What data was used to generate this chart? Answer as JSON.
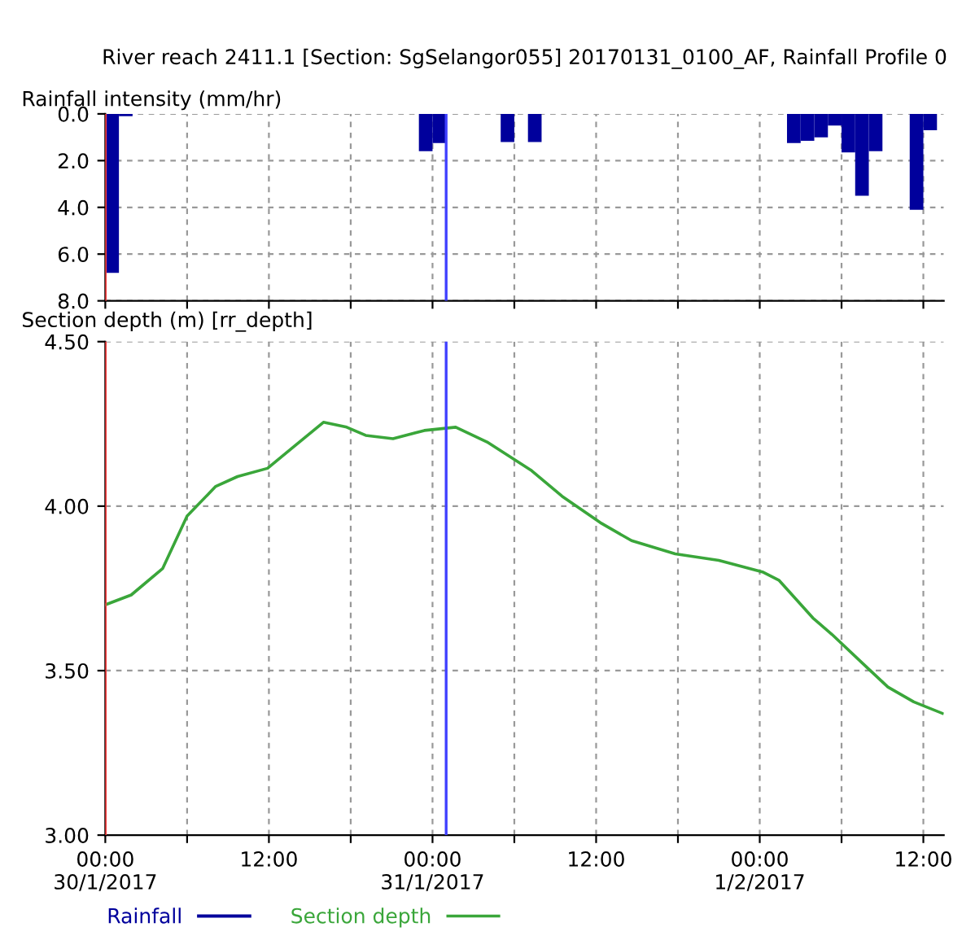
{
  "chart_data": [
    {
      "type": "bar",
      "title": "River reach 2411.1 [Section: SgSelangor055] 20170131_0100_AF, Rainfall Profile 0",
      "ylabel": "Rainfall intensity (mm/hr)",
      "series": [
        {
          "name": "Rainfall",
          "color": "#00009c",
          "x": [
            "2017-01-30T00:30",
            "2017-01-30T01:30",
            "2017-01-30T23:30",
            "2017-01-31T00:30",
            "2017-01-31T05:30",
            "2017-01-31T07:30",
            "2017-02-01T02:30",
            "2017-02-01T03:30",
            "2017-02-01T04:30",
            "2017-02-01T05:30",
            "2017-02-01T06:30",
            "2017-02-01T07:30",
            "2017-02-01T08:30",
            "2017-02-01T11:30",
            "2017-02-01T12:30"
          ],
          "values": [
            6.8,
            0.1,
            1.6,
            1.25,
            1.2,
            1.2,
            1.25,
            1.15,
            1.0,
            0.5,
            1.65,
            3.5,
            1.6,
            4.1,
            0.7
          ]
        }
      ],
      "xlim": [
        "2017-01-30T00:00",
        "2017-02-01T13:30"
      ],
      "xticks": [
        {
          "value": "2017-01-30T00:00",
          "label": null
        },
        {
          "value": "2017-01-30T06:00",
          "label": null
        },
        {
          "value": "2017-01-30T12:00",
          "label": null
        },
        {
          "value": "2017-01-30T18:00",
          "label": null
        },
        {
          "value": "2017-01-31T00:00",
          "label": null
        },
        {
          "value": "2017-01-31T06:00",
          "label": null
        },
        {
          "value": "2017-01-31T12:00",
          "label": null
        },
        {
          "value": "2017-01-31T18:00",
          "label": null
        },
        {
          "value": "2017-02-01T00:00",
          "label": null
        },
        {
          "value": "2017-02-01T06:00",
          "label": null
        },
        {
          "value": "2017-02-01T12:00",
          "label": null
        }
      ],
      "ylim": [
        8,
        0
      ],
      "yticks": [
        {
          "value": 0,
          "label": "0.0"
        },
        {
          "value": 2,
          "label": "2.0"
        },
        {
          "value": 4,
          "label": "4.0"
        },
        {
          "value": 6,
          "label": "6.0"
        },
        {
          "value": 8,
          "label": "8.0"
        }
      ],
      "tick_labels": "y",
      "grid": true,
      "ref_lines": [
        {
          "axis": "x",
          "value": "2017-01-30T00:00",
          "color": "#ff4040"
        },
        {
          "axis": "x",
          "value": "2017-01-31T01:00",
          "color": "#4040ff"
        }
      ]
    },
    {
      "type": "line",
      "ylabel": "Section depth (m) [rr_depth]",
      "series": [
        {
          "name": "Section depth",
          "color": "#3aa63a",
          "x": [
            "2017-01-30T00:00",
            "2017-01-30T01:54",
            "2017-01-30T04:12",
            "2017-01-30T06:00",
            "2017-01-30T08:06",
            "2017-01-30T09:42",
            "2017-01-30T11:54",
            "2017-01-30T13:48",
            "2017-01-30T16:00",
            "2017-01-30T17:42",
            "2017-01-30T19:06",
            "2017-01-30T21:06",
            "2017-01-30T23:24",
            "2017-01-31T01:42",
            "2017-01-31T04:00",
            "2017-01-31T07:12",
            "2017-01-31T09:30",
            "2017-01-31T12:18",
            "2017-01-31T14:36",
            "2017-01-31T17:48",
            "2017-01-31T21:00",
            "2017-02-01T00:12",
            "2017-02-01T01:24",
            "2017-02-01T03:54",
            "2017-02-01T05:18",
            "2017-02-01T07:36",
            "2017-02-01T09:24",
            "2017-02-01T11:18",
            "2017-02-01T13:24"
          ],
          "values": [
            3.7,
            3.73,
            3.81,
            3.97,
            4.06,
            4.09,
            4.115,
            4.18,
            4.255,
            4.24,
            4.215,
            4.205,
            4.23,
            4.24,
            4.195,
            4.11,
            4.03,
            3.95,
            3.895,
            3.855,
            3.835,
            3.8,
            3.775,
            3.66,
            3.61,
            3.52,
            3.45,
            3.405,
            3.37
          ]
        }
      ],
      "xlim": [
        "2017-01-30T00:00",
        "2017-02-01T13:30"
      ],
      "xticks": [
        {
          "value": "2017-01-30T00:00",
          "label": "00:00\n30/1/2017"
        },
        {
          "value": "2017-01-30T06:00",
          "label": null
        },
        {
          "value": "2017-01-30T12:00",
          "label": "12:00"
        },
        {
          "value": "2017-01-30T18:00",
          "label": null
        },
        {
          "value": "2017-01-31T00:00",
          "label": "00:00\n31/1/2017"
        },
        {
          "value": "2017-01-31T06:00",
          "label": null
        },
        {
          "value": "2017-01-31T12:00",
          "label": "12:00"
        },
        {
          "value": "2017-01-31T18:00",
          "label": null
        },
        {
          "value": "2017-02-01T00:00",
          "label": "00:00\n1/2/2017"
        },
        {
          "value": "2017-02-01T06:00",
          "label": null
        },
        {
          "value": "2017-02-01T12:00",
          "label": "12:00"
        }
      ],
      "ylim": [
        3.0,
        4.5
      ],
      "yticks": [
        {
          "value": 3.0,
          "label": "3.00"
        },
        {
          "value": 3.5,
          "label": "3.50"
        },
        {
          "value": 4.0,
          "label": "4.00"
        },
        {
          "value": 4.5,
          "label": "4.50"
        }
      ],
      "grid": true,
      "legend": "bottom left",
      "ref_lines": [
        {
          "axis": "x",
          "value": "2017-01-30T00:00",
          "color": "#ff4040"
        },
        {
          "axis": "x",
          "value": "2017-01-31T01:00",
          "color": "#4040ff"
        }
      ]
    }
  ]
}
